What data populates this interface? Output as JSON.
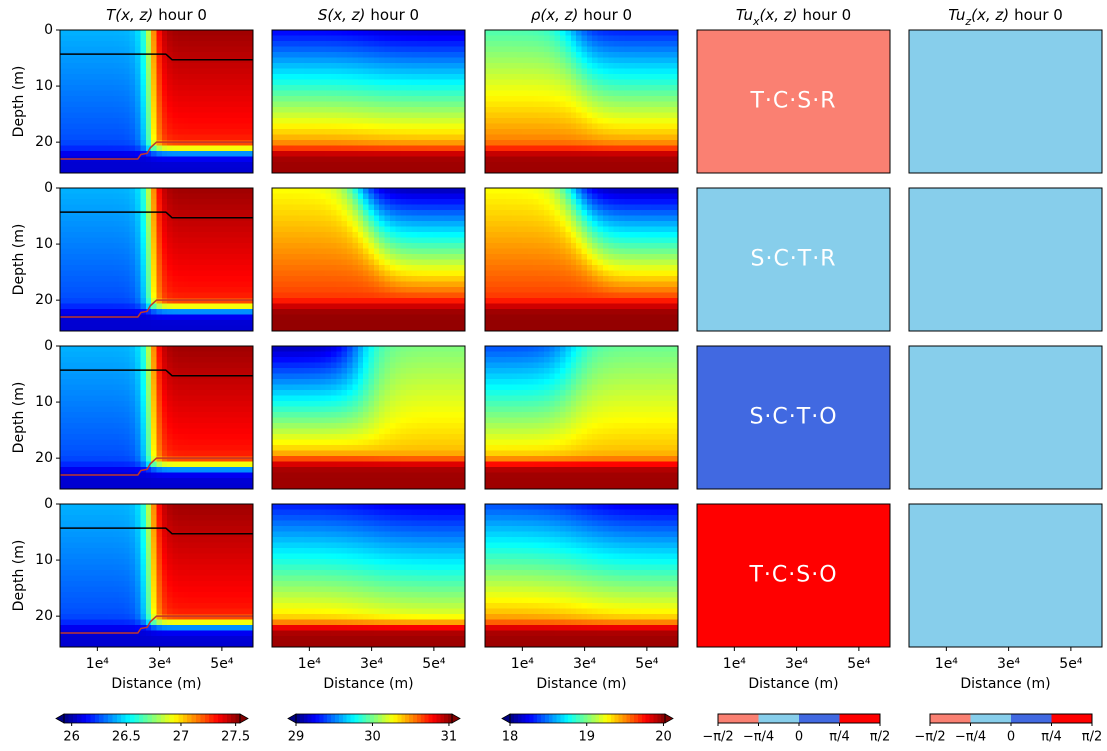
{
  "chart_data": {
    "type": "contour",
    "colormap": "jet",
    "columns": [
      {
        "symbol": "T",
        "args": "(x, z)",
        "time": "hour 0",
        "colorbar": {
          "lim": [
            25.93,
            27.54
          ],
          "ticks": [
            26,
            26.5,
            27,
            27.5
          ],
          "extend": true
        }
      },
      {
        "symbol": "S",
        "args": "(x, z)",
        "time": "hour 0",
        "colorbar": {
          "lim": [
            29,
            31.04
          ],
          "ticks": [
            29,
            30,
            31
          ],
          "extend": true
        }
      },
      {
        "symbol": "ρ",
        "args": "(x, z)",
        "time": "hour 0",
        "colorbar": {
          "lim": [
            18,
            20.02
          ],
          "ticks": [
            18,
            19,
            20
          ],
          "extend": true
        }
      },
      {
        "symbol": "Tu",
        "sub": "x",
        "args": "(x, z)",
        "time": "hour 0",
        "colorbar": {
          "lim": [
            -1.5708,
            1.5708
          ],
          "ticks": [
            {
              "value": -1.5708,
              "label": "−π/2"
            },
            {
              "value": -0.7854,
              "label": "−π/4"
            },
            {
              "value": 0,
              "label": "0"
            },
            {
              "value": 0.7854,
              "label": "π/4"
            },
            {
              "value": 1.5708,
              "label": "π/2"
            }
          ],
          "colors": [
            "#fa8072",
            "#87ceeb",
            "#4169e1",
            "#ff0000"
          ]
        }
      },
      {
        "symbol": "Tu",
        "sub": "z",
        "args": "(x, z)",
        "time": "hour 0",
        "colorbar": {
          "lim": [
            -1.5708,
            1.5708
          ],
          "ticks": [
            {
              "value": -1.5708,
              "label": "−π/2"
            },
            {
              "value": -0.7854,
              "label": "−π/4"
            },
            {
              "value": 0,
              "label": "0"
            },
            {
              "value": 0.7854,
              "label": "π/4"
            },
            {
              "value": 1.5708,
              "label": "π/2"
            }
          ],
          "colors": [
            "#fa8072",
            "#87ceeb",
            "#4169e1",
            "#ff0000"
          ]
        }
      }
    ],
    "rows": [
      {
        "regime": "T·C·S·R",
        "tu_x_color": "#fa8072"
      },
      {
        "regime": "S·C·T·R",
        "tu_x_color": "#87ceeb"
      },
      {
        "regime": "S·C·T·O",
        "tu_x_color": "#4169e1"
      },
      {
        "regime": "T·C·S·O",
        "tu_x_color": "#ff0000"
      }
    ],
    "tu_z_color": "#87ceeb",
    "xlabel": "Distance (m)",
    "ylabel": "Depth (m)",
    "xlim": [
      -2000,
      60000
    ],
    "xticks": [
      {
        "value": 10000,
        "label": "1e⁴"
      },
      {
        "value": 30000,
        "label": "3e⁴"
      },
      {
        "value": 50000,
        "label": "5e⁴"
      }
    ],
    "ylim": [
      25.5,
      0
    ],
    "yticks": [
      0,
      10,
      20
    ],
    "lines": [
      {
        "color": "#000000",
        "x": [
          -2000,
          32000,
          34000,
          60000
        ],
        "values": [
          4.3,
          4.3,
          5.3,
          5.3
        ]
      },
      {
        "color": "#c0392b",
        "x": [
          -2000,
          23000,
          24000,
          26000,
          27000,
          29000,
          60000
        ],
        "values": [
          23,
          23,
          22.2,
          22,
          21,
          20,
          20
        ]
      }
    ]
  }
}
